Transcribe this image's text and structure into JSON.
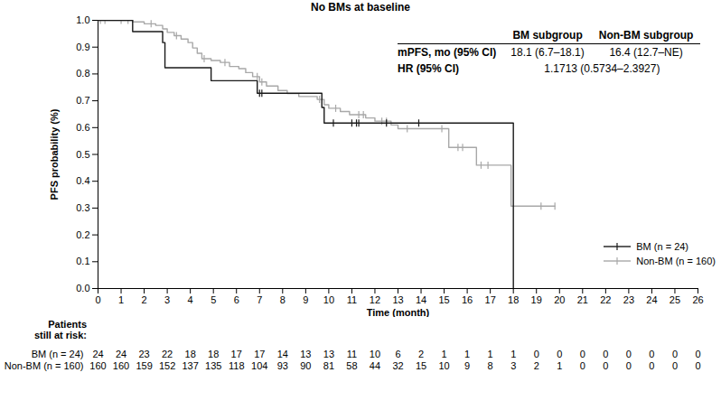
{
  "chart_data": {
    "type": "step",
    "title": "No BMs at baseline",
    "x_label": "Time (month)",
    "y_label": "PFS probability (%)",
    "xlim": [
      0,
      26
    ],
    "xticks": [
      0,
      1,
      2,
      3,
      4,
      5,
      6,
      7,
      8,
      9,
      10,
      11,
      12,
      13,
      14,
      15,
      16,
      17,
      18,
      19,
      20,
      21,
      22,
      23,
      24,
      25,
      26
    ],
    "ylim": [
      0,
      1
    ],
    "yticks": [
      {
        "value": 0,
        "label": "0.0"
      },
      0.1,
      0.2,
      0.3,
      0.4,
      0.5,
      0.6,
      0.7,
      0.8,
      0.9,
      {
        "value": 1,
        "label": "1.0"
      }
    ],
    "legend": "lower right",
    "series": [
      {
        "name": "BM (n = 24)",
        "color": "#1a1a1a",
        "marker": "tick",
        "x": [
          0,
          1.5,
          2.8,
          2.9,
          4.9,
          6.9,
          9.7,
          9.8,
          18
        ],
        "values": [
          1,
          0.958,
          0.917,
          0.823,
          0.775,
          0.728,
          0.675,
          0.617,
          0
        ],
        "censored": {
          "x": [
            7.0,
            7.1,
            10.2,
            11.0,
            11.2,
            11.3,
            12.5,
            13.9
          ],
          "values": [
            0.728,
            0.728,
            0.617,
            0.617,
            0.617,
            0.617,
            0.617,
            0.617
          ]
        },
        "at_risk": [
          24,
          24,
          23,
          22,
          18,
          18,
          17,
          17,
          14,
          13,
          13,
          11,
          10,
          6,
          2,
          1,
          1,
          1,
          1,
          0,
          0,
          0,
          0,
          0,
          0,
          0,
          0
        ]
      },
      {
        "name": "Non-BM (n = 160)",
        "color": "#a8a8a8",
        "marker": "tick",
        "x": [
          0,
          1.5,
          2.0,
          2.5,
          2.8,
          3.0,
          3.3,
          3.6,
          3.9,
          4.1,
          4.3,
          4.5,
          4.9,
          5.3,
          5.7,
          6.1,
          6.4,
          6.7,
          7.0,
          7.3,
          7.8,
          8.2,
          8.7,
          9.5,
          9.8,
          10.0,
          10.5,
          10.9,
          11.6,
          12.0,
          12.7,
          13.0,
          15.2,
          16.4,
          17.9,
          19.8
        ],
        "values": [
          1,
          0.994,
          0.987,
          0.981,
          0.968,
          0.955,
          0.943,
          0.93,
          0.917,
          0.897,
          0.877,
          0.857,
          0.85,
          0.843,
          0.828,
          0.82,
          0.805,
          0.79,
          0.77,
          0.755,
          0.738,
          0.727,
          0.716,
          0.705,
          0.685,
          0.672,
          0.66,
          0.648,
          0.636,
          0.624,
          0.61,
          0.596,
          0.526,
          0.46,
          0.307,
          0.307
        ],
        "censored": {
          "x": [
            0.1,
            0.3,
            1.0,
            1.3,
            2.3,
            3.4,
            4.6,
            5.5,
            6.9,
            7.1,
            9.6,
            10.3,
            11.3,
            11.5,
            12.3,
            12.5,
            13.4,
            14.9,
            15.6,
            15.8,
            16.6,
            16.9,
            19.2,
            19.8
          ],
          "values": [
            1,
            1,
            1,
            1,
            0.987,
            0.943,
            0.857,
            0.843,
            0.79,
            0.77,
            0.705,
            0.672,
            0.648,
            0.648,
            0.624,
            0.624,
            0.596,
            0.596,
            0.526,
            0.526,
            0.46,
            0.46,
            0.307,
            0.307
          ]
        },
        "at_risk": [
          160,
          160,
          159,
          152,
          137,
          135,
          118,
          104,
          93,
          90,
          81,
          58,
          44,
          32,
          15,
          10,
          9,
          8,
          3,
          2,
          1,
          0,
          0,
          0,
          0,
          0,
          0
        ]
      }
    ],
    "at_risk_title": [
      "Patients",
      "still at risk:"
    ],
    "at_risk_x": [
      0,
      1,
      2,
      3,
      4,
      5,
      6,
      7,
      8,
      9,
      10,
      11,
      12,
      13,
      14,
      15,
      16,
      17,
      18,
      19,
      20,
      21,
      22,
      23,
      24,
      25,
      26
    ],
    "summary_table": {
      "columns": [
        "BM subgroup",
        "Non-BM subgroup"
      ],
      "rows": [
        {
          "label": "mPFS, mo (95% CI)",
          "cells": [
            "18.1 (6.7–18.1)",
            "16.4 (12.7–NE)"
          ]
        },
        {
          "label": "HR (95% CI)",
          "cells": [
            "1.1713 (0.5734–2.3927)"
          ]
        }
      ]
    }
  }
}
